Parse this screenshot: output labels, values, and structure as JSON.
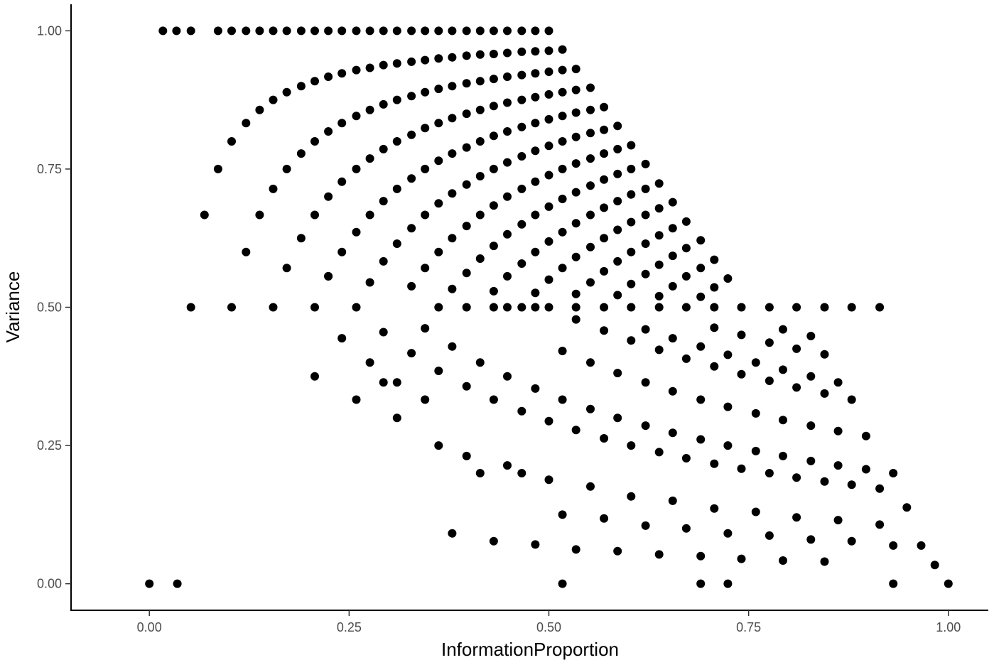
{
  "chart_data": {
    "type": "scatter",
    "title": "",
    "xlabel": "InformationProportion",
    "ylabel": "Variance",
    "xlim": [
      -0.098,
      1.05
    ],
    "ylim": [
      -0.048,
      1.048
    ],
    "xticks": [
      0,
      0.25,
      0.5,
      0.75,
      1
    ],
    "yticks": [
      0,
      0.25,
      0.5,
      0.75,
      1
    ],
    "xtick_labels": [
      "0.00",
      "0.25",
      "0.50",
      "0.75",
      "1.00"
    ],
    "ytick_labels": [
      "0.00",
      "0.25",
      "0.50",
      "0.75",
      "1.00"
    ],
    "grid": false,
    "legend": "none",
    "point_color": "#000000",
    "series": [
      {
        "x": [
          0.0,
          0.035,
          0.052,
          0.103,
          0.155,
          0.207,
          0.517,
          0.69,
          0.724,
          0.931,
          1.0,
          0.017,
          0.034,
          0.052,
          0.086,
          0.103,
          0.121,
          0.138,
          0.155,
          0.172,
          0.19,
          0.207,
          0.224,
          0.241,
          0.259,
          0.276,
          0.293,
          0.31,
          0.328,
          0.345,
          0.362,
          0.379,
          0.397,
          0.414,
          0.431,
          0.448,
          0.466,
          0.483,
          0.5,
          0.069,
          0.086,
          0.103,
          0.121,
          0.138,
          0.155,
          0.172,
          0.19,
          0.207,
          0.224,
          0.241,
          0.259,
          0.276,
          0.293,
          0.31,
          0.328,
          0.345,
          0.362,
          0.379,
          0.397,
          0.414,
          0.431,
          0.448,
          0.466,
          0.483,
          0.5,
          0.517,
          0.121,
          0.138,
          0.155,
          0.172,
          0.19,
          0.207,
          0.224,
          0.241,
          0.259,
          0.276,
          0.293,
          0.31,
          0.328,
          0.345,
          0.362,
          0.379,
          0.397,
          0.414,
          0.431,
          0.448,
          0.466,
          0.483,
          0.5,
          0.517,
          0.534,
          0.172,
          0.19,
          0.207,
          0.224,
          0.241,
          0.259,
          0.276,
          0.293,
          0.31,
          0.328,
          0.345,
          0.362,
          0.379,
          0.397,
          0.414,
          0.431,
          0.448,
          0.466,
          0.483,
          0.5,
          0.517,
          0.534,
          0.552,
          0.224,
          0.241,
          0.259,
          0.276,
          0.293,
          0.31,
          0.328,
          0.345,
          0.362,
          0.379,
          0.397,
          0.414,
          0.431,
          0.448,
          0.466,
          0.483,
          0.5,
          0.517,
          0.534,
          0.552,
          0.569,
          0.276,
          0.293,
          0.31,
          0.328,
          0.345,
          0.362,
          0.379,
          0.397,
          0.414,
          0.431,
          0.448,
          0.466,
          0.483,
          0.5,
          0.517,
          0.534,
          0.552,
          0.569,
          0.586,
          0.328,
          0.345,
          0.362,
          0.379,
          0.397,
          0.414,
          0.431,
          0.448,
          0.466,
          0.483,
          0.5,
          0.517,
          0.534,
          0.552,
          0.569,
          0.586,
          0.603,
          0.379,
          0.397,
          0.414,
          0.431,
          0.448,
          0.466,
          0.483,
          0.5,
          0.517,
          0.534,
          0.552,
          0.569,
          0.586,
          0.603,
          0.621,
          0.431,
          0.448,
          0.466,
          0.483,
          0.5,
          0.517,
          0.534,
          0.552,
          0.569,
          0.586,
          0.603,
          0.621,
          0.638,
          0.483,
          0.5,
          0.517,
          0.534,
          0.552,
          0.569,
          0.586,
          0.603,
          0.621,
          0.638,
          0.655,
          0.534,
          0.552,
          0.569,
          0.586,
          0.603,
          0.621,
          0.638,
          0.655,
          0.672,
          0.586,
          0.603,
          0.621,
          0.638,
          0.655,
          0.672,
          0.69,
          0.638,
          0.655,
          0.672,
          0.69,
          0.707,
          0.69,
          0.707,
          0.724,
          0.207,
          0.259,
          0.31,
          0.362,
          0.414,
          0.466,
          0.517,
          0.569,
          0.621,
          0.672,
          0.724,
          0.776,
          0.828,
          0.879,
          0.931,
          0.241,
          0.293,
          0.345,
          0.397,
          0.448,
          0.5,
          0.552,
          0.603,
          0.655,
          0.707,
          0.759,
          0.81,
          0.862,
          0.914,
          0.966,
          0.224,
          0.259,
          0.293,
          0.328,
          0.362,
          0.397,
          0.431,
          0.466,
          0.5,
          0.534,
          0.569,
          0.603,
          0.638,
          0.672,
          0.707,
          0.741,
          0.776,
          0.81,
          0.845,
          0.879,
          0.914,
          0.948,
          0.983,
          0.276,
          0.31,
          0.345,
          0.379,
          0.414,
          0.448,
          0.483,
          0.517,
          0.552,
          0.586,
          0.621,
          0.655,
          0.69,
          0.724,
          0.759,
          0.793,
          0.828,
          0.862,
          0.897,
          0.931,
          0.362,
          0.397,
          0.431,
          0.466,
          0.5,
          0.534,
          0.569,
          0.603,
          0.638,
          0.672,
          0.707,
          0.741,
          0.776,
          0.81,
          0.845,
          0.879,
          0.914,
          0.448,
          0.483,
          0.517,
          0.552,
          0.586,
          0.621,
          0.655,
          0.69,
          0.724,
          0.759,
          0.793,
          0.828,
          0.862,
          0.897,
          0.534,
          0.569,
          0.603,
          0.638,
          0.672,
          0.707,
          0.741,
          0.776,
          0.81,
          0.845,
          0.879,
          0.621,
          0.655,
          0.69,
          0.724,
          0.759,
          0.793,
          0.828,
          0.862,
          0.707,
          0.741,
          0.776,
          0.81,
          0.845,
          0.793,
          0.828,
          0.379,
          0.431,
          0.483,
          0.534,
          0.586,
          0.638,
          0.69,
          0.741,
          0.793,
          0.845
        ],
        "y": [
          0.0,
          0.0,
          0.5,
          0.5,
          0.5,
          0.5,
          0.0,
          0.0,
          0.0,
          0.0,
          0.0,
          1.0,
          1.0,
          1.0,
          1.0,
          1.0,
          1.0,
          1.0,
          1.0,
          1.0,
          1.0,
          1.0,
          1.0,
          1.0,
          1.0,
          1.0,
          1.0,
          1.0,
          1.0,
          1.0,
          1.0,
          1.0,
          1.0,
          1.0,
          1.0,
          1.0,
          1.0,
          1.0,
          1.0,
          0.667,
          0.75,
          0.8,
          0.833,
          0.857,
          0.875,
          0.889,
          0.9,
          0.909,
          0.917,
          0.923,
          0.929,
          0.933,
          0.938,
          0.941,
          0.944,
          0.947,
          0.95,
          0.952,
          0.955,
          0.957,
          0.958,
          0.96,
          0.962,
          0.963,
          0.964,
          0.966,
          0.6,
          0.667,
          0.714,
          0.75,
          0.778,
          0.8,
          0.818,
          0.833,
          0.846,
          0.857,
          0.867,
          0.875,
          0.882,
          0.889,
          0.895,
          0.9,
          0.905,
          0.909,
          0.913,
          0.917,
          0.92,
          0.923,
          0.926,
          0.929,
          0.931,
          0.571,
          0.625,
          0.667,
          0.7,
          0.727,
          0.75,
          0.769,
          0.786,
          0.8,
          0.812,
          0.824,
          0.833,
          0.842,
          0.85,
          0.857,
          0.864,
          0.87,
          0.875,
          0.88,
          0.885,
          0.889,
          0.893,
          0.897,
          0.556,
          0.6,
          0.636,
          0.667,
          0.692,
          0.714,
          0.733,
          0.75,
          0.765,
          0.778,
          0.789,
          0.8,
          0.81,
          0.818,
          0.826,
          0.833,
          0.84,
          0.846,
          0.852,
          0.857,
          0.862,
          0.545,
          0.583,
          0.615,
          0.643,
          0.667,
          0.688,
          0.706,
          0.722,
          0.737,
          0.75,
          0.762,
          0.773,
          0.783,
          0.792,
          0.8,
          0.808,
          0.815,
          0.821,
          0.828,
          0.538,
          0.571,
          0.6,
          0.625,
          0.647,
          0.667,
          0.684,
          0.7,
          0.714,
          0.727,
          0.739,
          0.75,
          0.76,
          0.769,
          0.778,
          0.786,
          0.793,
          0.533,
          0.562,
          0.588,
          0.611,
          0.632,
          0.65,
          0.667,
          0.682,
          0.696,
          0.708,
          0.72,
          0.731,
          0.741,
          0.75,
          0.759,
          0.529,
          0.556,
          0.579,
          0.6,
          0.619,
          0.636,
          0.652,
          0.667,
          0.68,
          0.692,
          0.704,
          0.714,
          0.724,
          0.526,
          0.55,
          0.571,
          0.591,
          0.609,
          0.625,
          0.64,
          0.654,
          0.667,
          0.679,
          0.69,
          0.524,
          0.545,
          0.565,
          0.583,
          0.6,
          0.615,
          0.63,
          0.643,
          0.655,
          0.522,
          0.542,
          0.56,
          0.577,
          0.593,
          0.607,
          0.621,
          0.52,
          0.538,
          0.556,
          0.571,
          0.586,
          0.519,
          0.536,
          0.552,
          0.375,
          0.333,
          0.3,
          0.25,
          0.2,
          0.2,
          0.125,
          0.118,
          0.105,
          0.1,
          0.091,
          0.087,
          0.08,
          0.077,
          0.069,
          0.444,
          0.364,
          0.333,
          0.231,
          0.214,
          0.188,
          0.176,
          0.158,
          0.15,
          0.136,
          0.13,
          0.12,
          0.115,
          0.107,
          0.069,
          0.556,
          0.5,
          0.455,
          0.417,
          0.385,
          0.357,
          0.333,
          0.312,
          0.294,
          0.278,
          0.263,
          0.25,
          0.238,
          0.227,
          0.217,
          0.208,
          0.2,
          0.192,
          0.185,
          0.179,
          0.172,
          0.138,
          0.034,
          0.4,
          0.364,
          0.462,
          0.429,
          0.4,
          0.375,
          0.353,
          0.333,
          0.316,
          0.3,
          0.286,
          0.273,
          0.261,
          0.25,
          0.24,
          0.231,
          0.222,
          0.214,
          0.207,
          0.2,
          0.5,
          0.5,
          0.5,
          0.5,
          0.5,
          0.5,
          0.5,
          0.5,
          0.5,
          0.5,
          0.5,
          0.5,
          0.5,
          0.5,
          0.5,
          0.5,
          0.5,
          0.5,
          0.5,
          0.421,
          0.4,
          0.381,
          0.364,
          0.348,
          0.333,
          0.32,
          0.308,
          0.296,
          0.286,
          0.276,
          0.267,
          0.478,
          0.458,
          0.44,
          0.423,
          0.407,
          0.393,
          0.379,
          0.367,
          0.355,
          0.344,
          0.333,
          0.46,
          0.444,
          0.429,
          0.414,
          0.4,
          0.387,
          0.375,
          0.364,
          0.463,
          0.45,
          0.436,
          0.425,
          0.415,
          0.46,
          0.448,
          0.091,
          0.077,
          0.071,
          0.062,
          0.059,
          0.053,
          0.05,
          0.045,
          0.042,
          0.04
        ]
      }
    ]
  }
}
